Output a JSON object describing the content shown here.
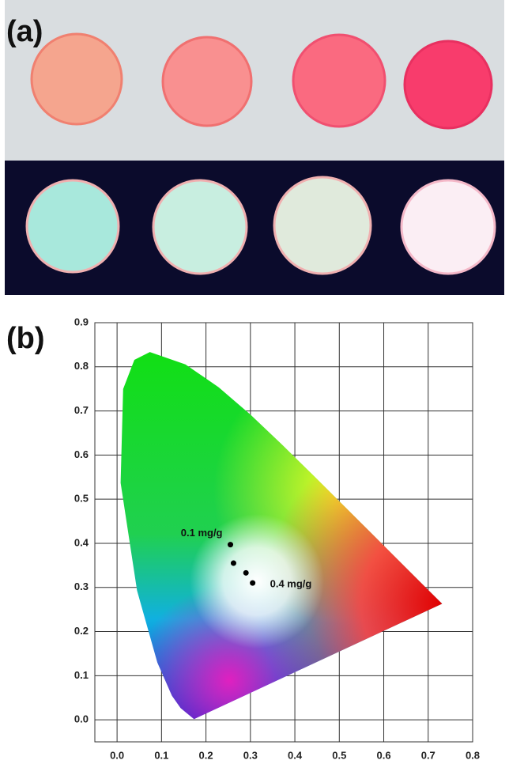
{
  "panel_labels": [
    "(a)",
    "(b)"
  ],
  "chart_data": {
    "type": "scatter",
    "x": [
      0.255,
      0.262,
      0.29,
      0.305
    ],
    "values": [
      0.397,
      0.355,
      0.333,
      0.31
    ],
    "color": "#000000",
    "annotations": [
      "0.1 mg/g",
      "0.4 mg/g"
    ],
    "xlim": [
      -0.05,
      0.8
    ],
    "ylim": [
      -0.05,
      0.9
    ],
    "xticks": [
      {
        "value": 0,
        "label": "0.0"
      },
      0.1,
      0.2,
      0.3,
      0.4,
      0.5,
      0.6,
      0.7,
      0.8
    ],
    "yticks": [
      {
        "value": 0,
        "label": "0.0"
      },
      0.1,
      0.2,
      0.3,
      0.4,
      0.5,
      0.6,
      0.7,
      0.8,
      0.9
    ],
    "grid": true
  }
}
